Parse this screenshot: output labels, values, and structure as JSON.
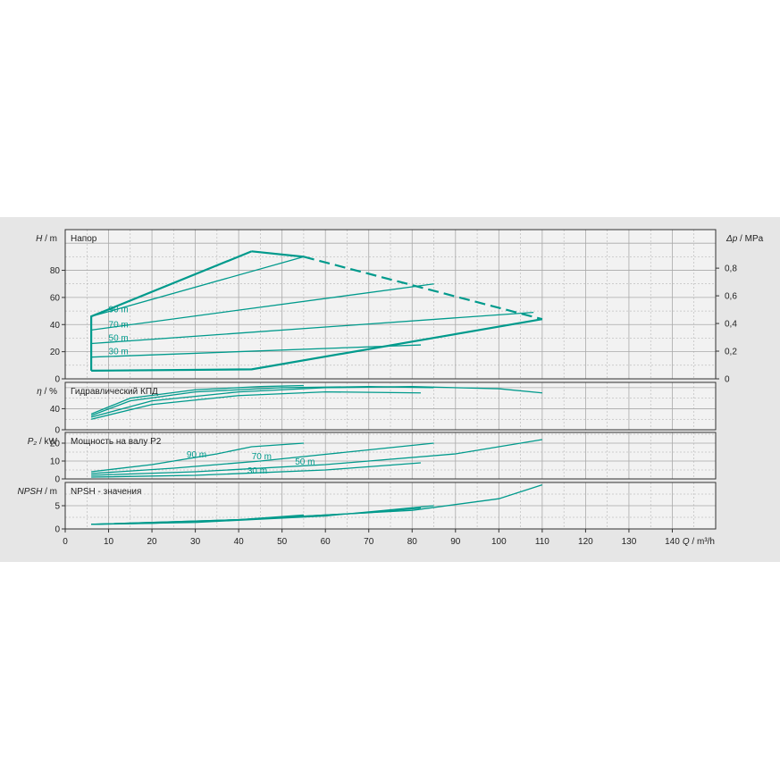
{
  "chart_data": {
    "type": "line",
    "colors": {
      "curve": "#009a8c",
      "grid": "#a9a9a9",
      "background": "#e6e6e6",
      "plot_bg": "#f2f2f2"
    },
    "x_axis": {
      "label_prefix": "Q",
      "label_unit": " / m³/h",
      "range": [
        0,
        150
      ],
      "ticks": [
        "0",
        "10",
        "20",
        "30",
        "40",
        "50",
        "60",
        "70",
        "80",
        "90",
        "100",
        "110",
        "120",
        "130",
        "140"
      ]
    },
    "panels": [
      {
        "id": "head",
        "title": "Напор",
        "ylabel_var": "H",
        "ylabel_unit": " / m",
        "ylim": [
          0,
          110
        ],
        "yticks": [
          "0",
          "20",
          "40",
          "60",
          "80"
        ],
        "ytick_values": [
          0,
          20,
          40,
          60,
          80
        ],
        "right_axis": {
          "label_var": "Δp",
          "label_unit": " / MPa",
          "ticks": [
            "0",
            "0,2",
            "0,4",
            "0,6",
            "0,8"
          ],
          "tick_values": [
            0,
            20.4,
            40.8,
            61.2,
            81.6
          ]
        },
        "envelope": [
          [
            6,
            6
          ],
          [
            6,
            46
          ],
          [
            43,
            94
          ],
          [
            55,
            90
          ],
          [
            110,
            44
          ],
          [
            43,
            7
          ],
          [
            6,
            6
          ]
        ],
        "envelope_dashed_from": 2,
        "series": [
          {
            "name": "90 m",
            "x": [
              6,
              55
            ],
            "y": [
              46,
              90
            ]
          },
          {
            "name": "70 m",
            "x": [
              6,
              85
            ],
            "y": [
              36,
              70
            ]
          },
          {
            "name": "50 m",
            "x": [
              6,
              108
            ],
            "y": [
              26,
              49
            ]
          },
          {
            "name": "30 m",
            "x": [
              6,
              82
            ],
            "y": [
              16,
              25
            ]
          }
        ],
        "curve_labels": [
          {
            "text": "90 m",
            "x": 10,
            "y": 49
          },
          {
            "text": "70 m",
            "x": 10,
            "y": 38
          },
          {
            "text": "50 m",
            "x": 10,
            "y": 28
          },
          {
            "text": "30 m",
            "x": 10,
            "y": 18
          }
        ]
      },
      {
        "id": "efficiency",
        "title": "Гидравлический КПД",
        "ylabel_var": "η",
        "ylabel_unit": " / %",
        "ylim": [
          0,
          90
        ],
        "yticks": [
          "0",
          "40"
        ],
        "ytick_values": [
          0,
          40
        ],
        "series": [
          {
            "name": "90 m",
            "x": [
              6,
              15,
              30,
              45,
              55
            ],
            "y": [
              30,
              60,
              76,
              82,
              84
            ]
          },
          {
            "name": "70 m",
            "x": [
              6,
              15,
              30,
              50,
              70,
              85
            ],
            "y": [
              27,
              55,
              72,
              80,
              82,
              80
            ]
          },
          {
            "name": "50 m",
            "x": [
              6,
              20,
              40,
              60,
              80,
              100,
              110
            ],
            "y": [
              24,
              55,
              72,
              80,
              82,
              78,
              70
            ]
          },
          {
            "name": "30 m",
            "x": [
              6,
              20,
              40,
              60,
              82
            ],
            "y": [
              20,
              48,
              65,
              72,
              70
            ]
          }
        ]
      },
      {
        "id": "power",
        "title": "Мощность на валу P2",
        "ylabel_var": "P₂",
        "ylabel_unit": " / kW",
        "ylim": [
          0,
          26
        ],
        "yticks": [
          "0",
          "10",
          "20"
        ],
        "ytick_values": [
          0,
          10,
          20
        ],
        "series": [
          {
            "name": "90 m",
            "x": [
              6,
              20,
              35,
              43,
              55
            ],
            "y": [
              4,
              8,
              14,
              18,
              20
            ]
          },
          {
            "name": "70 m",
            "x": [
              6,
              25,
              45,
              65,
              85
            ],
            "y": [
              3,
              6,
              10,
              15,
              20
            ]
          },
          {
            "name": "50 m",
            "x": [
              6,
              30,
              60,
              90,
              110
            ],
            "y": [
              2,
              4,
              8,
              14,
              22
            ]
          },
          {
            "name": "30 m",
            "x": [
              6,
              30,
              60,
              82
            ],
            "y": [
              1,
              2,
              5,
              9
            ]
          }
        ],
        "curve_labels": [
          {
            "text": "90 m",
            "x": 28,
            "y": 12
          },
          {
            "text": "70 m",
            "x": 43,
            "y": 11
          },
          {
            "text": "50 m",
            "x": 53,
            "y": 8
          },
          {
            "text": "30 m",
            "x": 42,
            "y": 3
          }
        ]
      },
      {
        "id": "npsh",
        "title": "NPSH - значения",
        "ylabel_var": "NPSH",
        "ylabel_unit": " / m",
        "ylim": [
          0,
          10
        ],
        "yticks": [
          "0",
          "5"
        ],
        "ytick_values": [
          0,
          5
        ],
        "series": [
          {
            "name": "90 m",
            "x": [
              6,
              20,
              40,
              55
            ],
            "y": [
              1,
              1.2,
              2,
              3
            ]
          },
          {
            "name": "70 m",
            "x": [
              6,
              30,
              60,
              85
            ],
            "y": [
              1,
              1.4,
              2.8,
              5
            ]
          },
          {
            "name": "50 m",
            "x": [
              6,
              40,
              80,
              100,
              110
            ],
            "y": [
              1,
              2,
              4,
              6.5,
              9.5
            ]
          },
          {
            "name": "30 m",
            "x": [
              6,
              40,
              70,
              82
            ],
            "y": [
              1,
              2,
              3.5,
              4.5
            ]
          }
        ]
      }
    ]
  }
}
